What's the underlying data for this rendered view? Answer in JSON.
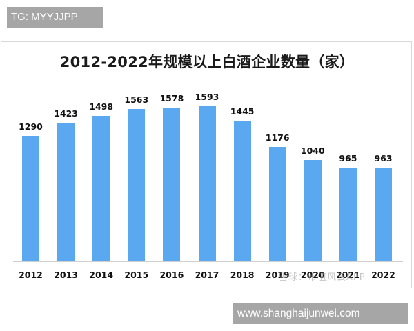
{
  "watermarks": {
    "top_tag": "TG: MYYJJPP",
    "bottom_tag": "www.shanghaijunwei.com",
    "source_overlay": "雪球：市值风云APP"
  },
  "chart_data": {
    "type": "bar",
    "title": "2012-2022年规模以上白酒企业数量（家）",
    "xlabel": "",
    "ylabel": "",
    "categories": [
      "2012",
      "2013",
      "2014",
      "2015",
      "2016",
      "2017",
      "2018",
      "2019",
      "2020",
      "2021",
      "2022"
    ],
    "values": [
      1290,
      1423,
      1498,
      1563,
      1578,
      1593,
      1445,
      1176,
      1040,
      965,
      963
    ],
    "value_labels": [
      "1290",
      "1423",
      "1498",
      "1563",
      "1578",
      "1593",
      "1445",
      "1176",
      "1040",
      "965",
      "963"
    ],
    "ylim": [
      0,
      1700
    ],
    "grid": false,
    "legend": "none",
    "bar_color": "#59a8f0"
  }
}
